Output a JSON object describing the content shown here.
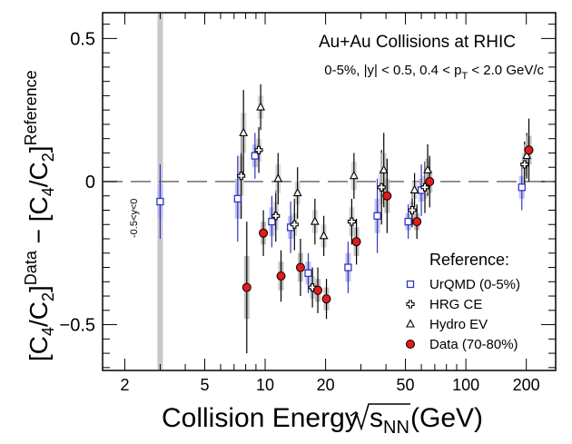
{
  "chart_data": {
    "type": "scatter",
    "title": "Au+Au Collisions at RHIC",
    "subtitle": {
      "main": "0-5%, |y| < 0.5, 0.4 < p",
      "sub": "T",
      "tail": " < 2.0 GeV/c"
    },
    "xlabel": {
      "pre": "Collision Energy ",
      "s": "s",
      "sub": "NN",
      "post": " (GeV)"
    },
    "ylabel": {
      "p1": "[C",
      "s1": "4",
      "p2": "/C",
      "s2": "2",
      "p3": "]",
      "sup1": "Data",
      "p4": " − [C",
      "s3": "4",
      "p5": "/C",
      "s4": "2",
      "p6": "]",
      "sup2": "Reference"
    },
    "xscale": "log",
    "xlim": [
      1.55,
      280
    ],
    "ylim": [
      -0.66,
      0.59
    ],
    "xticks": [
      2,
      5,
      10,
      20,
      50,
      100,
      200
    ],
    "xtick_labels": [
      "2",
      "5",
      "10",
      "20",
      "50",
      "100",
      "200"
    ],
    "yticks": [
      -0.5,
      0,
      0.5
    ],
    "ytick_labels": [
      "−0.5",
      "0",
      "0.5"
    ],
    "reference_line": 0,
    "band_x": 3.0,
    "band_label": "-0.5<y<0",
    "legend_title": "Reference:",
    "series": [
      {
        "name": "UrQMD (0-5%)",
        "marker": "square-open",
        "color": "#3333cc",
        "x": [
          3.0,
          7.3,
          8.9,
          10.8,
          13.4,
          16.4,
          25.9,
          36.2,
          51.6,
          60.0,
          190.0
        ],
        "y": [
          -0.07,
          -0.06,
          0.09,
          -0.14,
          -0.16,
          -0.32,
          -0.3,
          -0.12,
          -0.14,
          -0.03,
          -0.02
        ],
        "err_stat": [
          0.13,
          0.15,
          0.08,
          0.09,
          0.09,
          0.07,
          0.09,
          0.13,
          0.06,
          0.09,
          0.08
        ],
        "err_sys": [
          0.06,
          0.07,
          0.04,
          0.05,
          0.04,
          0.04,
          0.05,
          0.06,
          0.03,
          0.04,
          0.04
        ]
      },
      {
        "name": "HRG CE",
        "marker": "cross-open",
        "color": "#000000",
        "x": [
          7.6,
          9.3,
          11.3,
          14.0,
          17.2,
          27.0,
          38.0,
          54.0,
          62.5,
          196.0
        ],
        "y": [
          0.02,
          0.11,
          -0.12,
          -0.15,
          -0.37,
          -0.14,
          -0.02,
          -0.1,
          -0.02,
          0.06
        ],
        "err_stat": [
          0.15,
          0.08,
          0.09,
          0.09,
          0.07,
          0.08,
          0.13,
          0.06,
          0.09,
          0.08
        ],
        "err_sys": [
          0.07,
          0.04,
          0.05,
          0.04,
          0.04,
          0.05,
          0.06,
          0.03,
          0.04,
          0.04
        ]
      },
      {
        "name": "Hydro EV",
        "marker": "triangle-open",
        "color": "#000000",
        "x": [
          7.8,
          9.5,
          11.6,
          14.5,
          17.7,
          19.6,
          27.7,
          39.0,
          55.5,
          64.5,
          201.0
        ],
        "y": [
          0.17,
          0.26,
          0.01,
          -0.04,
          -0.14,
          -0.19,
          0.02,
          0.04,
          -0.03,
          0.04,
          0.09
        ],
        "err_stat": [
          0.15,
          0.08,
          0.09,
          0.09,
          0.08,
          0.07,
          0.08,
          0.13,
          0.06,
          0.09,
          0.08
        ],
        "err_sys": [
          0.07,
          0.04,
          0.05,
          0.04,
          0.04,
          0.04,
          0.05,
          0.06,
          0.03,
          0.04,
          0.04
        ]
      },
      {
        "name": "Data (70-80%)",
        "marker": "circle-filled",
        "color": "#e8191a",
        "x": [
          8.1,
          9.8,
          12.0,
          15.0,
          18.3,
          20.2,
          28.5,
          40.5,
          57.0,
          66.0,
          206.0
        ],
        "y": [
          -0.37,
          -0.18,
          -0.33,
          -0.3,
          -0.38,
          -0.41,
          -0.21,
          -0.05,
          -0.14,
          0.0,
          0.11
        ],
        "err_stat": [
          0.23,
          0.08,
          0.09,
          0.1,
          0.08,
          0.07,
          0.08,
          0.13,
          0.06,
          0.09,
          0.11
        ],
        "err_sys": [
          0.11,
          0.04,
          0.05,
          0.05,
          0.04,
          0.04,
          0.05,
          0.06,
          0.03,
          0.04,
          0.05
        ]
      }
    ]
  }
}
